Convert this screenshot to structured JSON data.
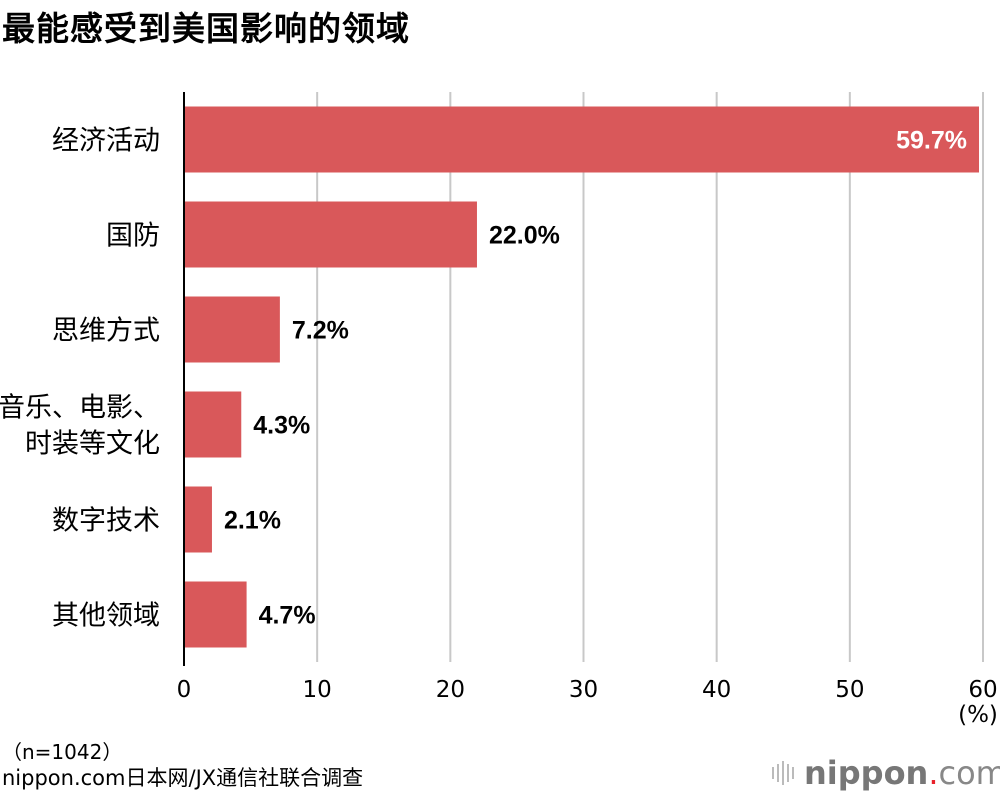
{
  "chart_data": {
    "type": "bar",
    "orientation": "horizontal",
    "title": "最能感受到美国影响的领域",
    "categories": [
      "经济活动",
      "国防",
      "思维方式",
      "音乐、电影、时装等文化",
      "数字技术",
      "其他领域"
    ],
    "category_lines": [
      [
        "经济活动"
      ],
      [
        "国防"
      ],
      [
        "思维方式"
      ],
      [
        "音乐、电影、",
        "时装等文化"
      ],
      [
        "数字技术"
      ],
      [
        "其他领域"
      ]
    ],
    "values": [
      59.7,
      22.0,
      7.2,
      4.3,
      2.1,
      4.7
    ],
    "data_labels": [
      "59.7%",
      "22.0%",
      "7.2%",
      "4.3%",
      "2.1%",
      "4.7%"
    ],
    "xlim": [
      0,
      60
    ],
    "xticks": [
      0,
      10,
      20,
      30,
      40,
      50,
      60
    ],
    "xlabel": "(%)",
    "grid": true,
    "bar_color": "#d9585a"
  },
  "note": "（n=1042）",
  "source": "nippon.com日本网/JX通信社联合调查",
  "logo": {
    "name": "nippon",
    "dot": ".",
    "suffix": "com",
    "accent": "#e8202a"
  }
}
